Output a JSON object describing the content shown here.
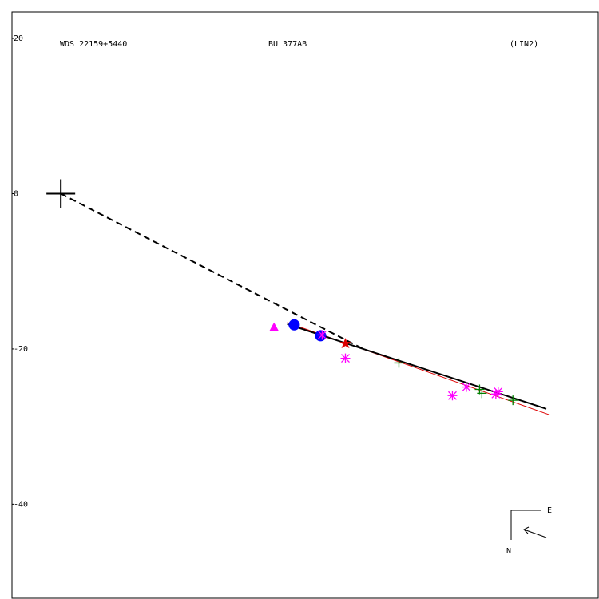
{
  "chart_data": {
    "type": "scatter",
    "title": "WDS 22159+5440",
    "subtitle": "BU  377AB",
    "annotation": "(LIN2)",
    "compass_east": "E",
    "compass_north": "N",
    "xlim": [
      -6.3,
      69.3
    ],
    "ylim": [
      -52.1,
      23.4
    ],
    "yticks": [
      20,
      0,
      -20,
      -40
    ],
    "series": [
      {
        "marker": "cross",
        "color": "#000000",
        "x": [
          0
        ],
        "y": [
          0
        ]
      },
      {
        "marker": "triangle",
        "color": "#ff00ff",
        "x": [
          27.5
        ],
        "y": [
          -17.2
        ]
      },
      {
        "marker": "circle",
        "color": "#0000ff",
        "x": [
          30.1,
          33.5
        ],
        "y": [
          -16.9,
          -18.3
        ]
      },
      {
        "marker": "asterisk",
        "color": "#ff00ff",
        "x": [
          33.7,
          36.7,
          50.5,
          52.3,
          56.1,
          56.4
        ],
        "y": [
          -18.2,
          -21.2,
          -26.0,
          -24.9,
          -25.8,
          -25.5
        ]
      },
      {
        "marker": "star",
        "color": "#dd0000",
        "x": [
          36.7
        ],
        "y": [
          -19.3
        ]
      },
      {
        "marker": "plus",
        "color": "#008000",
        "x": [
          43.6,
          54.0,
          54.3,
          58.3
        ],
        "y": [
          -21.8,
          -25.2,
          -25.7,
          -26.6
        ]
      }
    ],
    "lines": [
      {
        "color": "#000000",
        "dash": true,
        "x": [
          0,
          39.0
        ],
        "y": [
          0,
          -20.0
        ]
      },
      {
        "color": "#dd0000",
        "dash": false,
        "x": [
          29.2,
          63.1
        ],
        "y": [
          -16.6,
          -28.5
        ]
      },
      {
        "color": "#000000",
        "dash": false,
        "x": [
          29.2,
          62.6
        ],
        "y": [
          -16.8,
          -27.7
        ]
      }
    ]
  }
}
